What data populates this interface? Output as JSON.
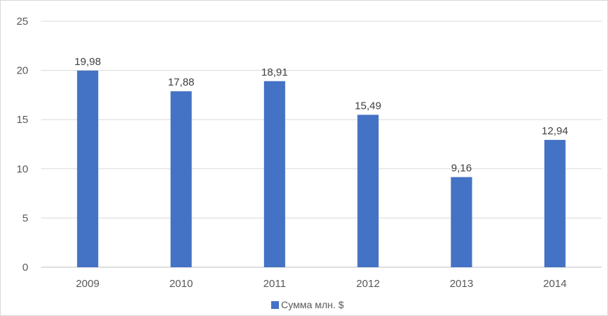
{
  "chart_data": {
    "type": "bar",
    "categories": [
      "2009",
      "2010",
      "2011",
      "2012",
      "2013",
      "2014"
    ],
    "series": [
      {
        "name": "Сумма млн. $",
        "values": [
          19.98,
          17.88,
          18.91,
          15.49,
          9.16,
          12.94
        ],
        "labels": [
          "19,98",
          "17,88",
          "18,91",
          "15,49",
          "9,16",
          "12,94"
        ],
        "color": "#4472c4"
      }
    ],
    "yticks": [
      "0",
      "5",
      "10",
      "15",
      "20",
      "25"
    ],
    "ylim": [
      0,
      25
    ],
    "grid": true,
    "legend_position": "bottom",
    "colors": {
      "bar": "#4472c4",
      "grid": "#d9d9d9",
      "text": "#595959"
    }
  }
}
